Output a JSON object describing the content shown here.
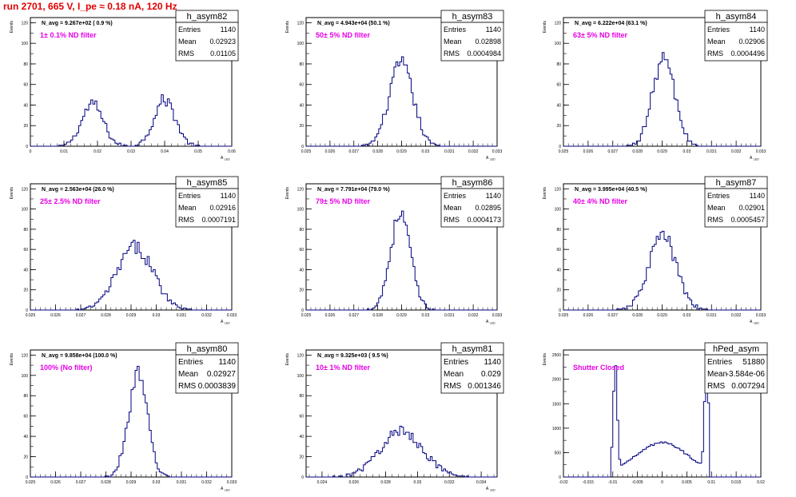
{
  "title": "run 2701,   665 V, I_pe ≈ 0.18 nA, 120 Hz",
  "colors": {
    "line": "#00007f",
    "title": "#e00000",
    "filter_label": "#e600e6"
  },
  "chart_data": [
    {
      "type": "histogram",
      "hist": "h_asym82",
      "navg": "N_avg = 9.267e+02 ( 0.9 %)",
      "filter": "1± 0.1% ND filter",
      "stats": [
        [
          "Entries",
          "1140"
        ],
        [
          "Mean",
          "0.02923"
        ],
        [
          "RMS",
          "0.01105"
        ]
      ],
      "xlabel": "A",
      "xlabel_sub": "LED",
      "ylabel": "Events",
      "xlim": [
        0,
        0.06
      ],
      "ylim": [
        0,
        125
      ],
      "xticks": [
        "0",
        "0.01",
        "0.02",
        "0.03",
        "0.04",
        "0.05",
        "0.06"
      ],
      "yticks": [
        "0",
        "20",
        "40",
        "60",
        "80",
        "100",
        "120"
      ],
      "peaks": [
        {
          "mean": 0.0185,
          "sigma": 0.0032,
          "amp": 41,
          "n": 570
        },
        {
          "mean": 0.04,
          "sigma": 0.0032,
          "amp": 45,
          "n": 570
        }
      ]
    },
    {
      "type": "histogram",
      "hist": "h_asym83",
      "navg": "N_avg = 4.943e+04 (50.1 %)",
      "filter": "50± 5% ND filter",
      "stats": [
        [
          "Entries",
          "1140"
        ],
        [
          "Mean",
          "0.02898"
        ],
        [
          "RMS",
          "0.0004984"
        ]
      ],
      "xlabel": "A",
      "xlabel_sub": "LED",
      "ylabel": "Events",
      "xlim": [
        0.025,
        0.033
      ],
      "ylim": [
        0,
        125
      ],
      "xticks": [
        "0.025",
        "0.026",
        "0.027",
        "0.028",
        "0.029",
        "0.03",
        "0.031",
        "0.032",
        "0.033"
      ],
      "yticks": [
        "0",
        "20",
        "40",
        "60",
        "80",
        "100",
        "120"
      ],
      "peaks": [
        {
          "mean": 0.02898,
          "sigma": 0.0005,
          "amp": 80,
          "n": 1140
        }
      ]
    },
    {
      "type": "histogram",
      "hist": "h_asym84",
      "navg": "N_avg = 6.222e+04 (63.1 %)",
      "filter": "63± 5% ND filter",
      "stats": [
        [
          "Entries",
          "1140"
        ],
        [
          "Mean",
          "0.02906"
        ],
        [
          "RMS",
          "0.0004496"
        ]
      ],
      "xlabel": "A",
      "xlabel_sub": "LED",
      "ylabel": "Events",
      "xlim": [
        0.025,
        0.033
      ],
      "ylim": [
        0,
        125
      ],
      "xticks": [
        "0.025",
        "0.026",
        "0.027",
        "0.028",
        "0.029",
        "0.03",
        "0.031",
        "0.032",
        "0.033"
      ],
      "yticks": [
        "0",
        "20",
        "40",
        "60",
        "80",
        "100",
        "120"
      ],
      "peaks": [
        {
          "mean": 0.02906,
          "sigma": 0.00045,
          "amp": 85,
          "n": 1140
        }
      ]
    },
    {
      "type": "histogram",
      "hist": "h_asym85",
      "navg": "N_avg = 2.563e+04 (26.0 %)",
      "filter": "25± 2.5% ND filter",
      "stats": [
        [
          "Entries",
          "1140"
        ],
        [
          "Mean",
          "0.02916"
        ],
        [
          "RMS",
          "0.0007191"
        ]
      ],
      "xlabel": "A",
      "xlabel_sub": "LED",
      "ylabel": "Events",
      "xlim": [
        0.025,
        0.033
      ],
      "ylim": [
        0,
        125
      ],
      "xticks": [
        "0.025",
        "0.026",
        "0.027",
        "0.028",
        "0.029",
        "0.03",
        "0.031",
        "0.032",
        "0.033"
      ],
      "yticks": [
        "0",
        "20",
        "40",
        "60",
        "80",
        "100",
        "120"
      ],
      "peaks": [
        {
          "mean": 0.02916,
          "sigma": 0.00072,
          "amp": 62,
          "n": 1140
        }
      ]
    },
    {
      "type": "histogram",
      "hist": "h_asym86",
      "navg": "N_avg = 7.791e+04 (79.0 %)",
      "filter": "79± 5% ND filter",
      "stats": [
        [
          "Entries",
          "1140"
        ],
        [
          "Mean",
          "0.02895"
        ],
        [
          "RMS",
          "0.0004173"
        ]
      ],
      "xlabel": "A",
      "xlabel_sub": "LED",
      "ylabel": "Events",
      "xlim": [
        0.025,
        0.033
      ],
      "ylim": [
        0,
        125
      ],
      "xticks": [
        "0.025",
        "0.026",
        "0.027",
        "0.028",
        "0.029",
        "0.03",
        "0.031",
        "0.032",
        "0.033"
      ],
      "yticks": [
        "0",
        "20",
        "40",
        "60",
        "80",
        "100",
        "120"
      ],
      "peaks": [
        {
          "mean": 0.02895,
          "sigma": 0.00042,
          "amp": 95,
          "n": 1140
        }
      ]
    },
    {
      "type": "histogram",
      "hist": "h_asym87",
      "navg": "N_avg = 3.995e+04 (40.5 %)",
      "filter": "40± 4% ND filter",
      "stats": [
        [
          "Entries",
          "1140"
        ],
        [
          "Mean",
          "0.02901"
        ],
        [
          "RMS",
          "0.0005457"
        ]
      ],
      "xlabel": "A",
      "xlabel_sub": "LED",
      "ylabel": "Events",
      "xlim": [
        0.025,
        0.033
      ],
      "ylim": [
        0,
        125
      ],
      "xticks": [
        "0.025",
        "0.026",
        "0.027",
        "0.028",
        "0.029",
        "0.03",
        "0.031",
        "0.032",
        "0.033"
      ],
      "yticks": [
        "0",
        "20",
        "40",
        "60",
        "80",
        "100",
        "120"
      ],
      "peaks": [
        {
          "mean": 0.02901,
          "sigma": 0.00055,
          "amp": 74,
          "n": 1140
        }
      ]
    },
    {
      "type": "histogram",
      "hist": "h_asym80",
      "navg": "N_avg = 9.858e+04 (100.0 %)",
      "filter": "100% (No filter)",
      "stats": [
        [
          "Entries",
          "1140"
        ],
        [
          "Mean",
          "0.02927"
        ],
        [
          "RMS",
          "0.0003839"
        ]
      ],
      "xlabel": "A",
      "xlabel_sub": "LED",
      "ylabel": "Events",
      "xlim": [
        0.025,
        0.033
      ],
      "ylim": [
        0,
        125
      ],
      "xticks": [
        "0.025",
        "0.026",
        "0.027",
        "0.028",
        "0.029",
        "0.03",
        "0.031",
        "0.032",
        "0.033"
      ],
      "yticks": [
        "0",
        "20",
        "40",
        "60",
        "80",
        "100",
        "120"
      ],
      "peaks": [
        {
          "mean": 0.02927,
          "sigma": 0.00038,
          "amp": 100,
          "n": 1140
        }
      ]
    },
    {
      "type": "histogram",
      "hist": "h_asym81",
      "navg": "N_avg = 9.325e+03 ( 9.5 %)",
      "filter": "10± 1% ND filter",
      "stats": [
        [
          "Entries",
          "1140"
        ],
        [
          "Mean",
          "0.029"
        ],
        [
          "RMS",
          "0.001346"
        ]
      ],
      "xlabel": "A",
      "xlabel_sub": "LED",
      "ylabel": "Events",
      "xlim": [
        0.023,
        0.035
      ],
      "ylim": [
        0,
        125
      ],
      "xticks": [
        "0.024",
        "0.026",
        "0.028",
        "0.03",
        "0.032",
        "0.034"
      ],
      "yticks": [
        "0",
        "20",
        "40",
        "60",
        "80",
        "100",
        "120"
      ],
      "peaks": [
        {
          "mean": 0.029,
          "sigma": 0.00135,
          "amp": 45,
          "n": 1140
        }
      ]
    },
    {
      "type": "histogram",
      "hist": "hPed_asym",
      "navg": "",
      "filter": "Shutter Closed",
      "stats": [
        [
          "Entries",
          "51880"
        ],
        [
          "Mean",
          "-3.584e-06"
        ],
        [
          "RMS",
          "0.007294"
        ]
      ],
      "xlabel": "",
      "xlabel_sub": "",
      "ylabel": "Events",
      "xlim": [
        -0.02,
        0.02
      ],
      "ylim": [
        0,
        2600
      ],
      "xticks": [
        "-0.02",
        "-0.015",
        "-0.01",
        "-0.005",
        "0",
        "0.005",
        "0.01",
        "0.015",
        "0.02"
      ],
      "yticks": [
        "0",
        "500",
        "1000",
        "1500",
        "2000",
        "2500"
      ],
      "peaks": [
        {
          "mean": -0.0095,
          "sigma": 0.0004,
          "amp": 2150,
          "n": 0
        },
        {
          "mean": 0.009,
          "sigma": 0.0004,
          "amp": 2250,
          "n": 0
        },
        {
          "mean": 0.0,
          "sigma": 0.0055,
          "amp": 700,
          "n": 0
        }
      ],
      "range": [
        -0.0102,
        0.0097
      ]
    }
  ]
}
